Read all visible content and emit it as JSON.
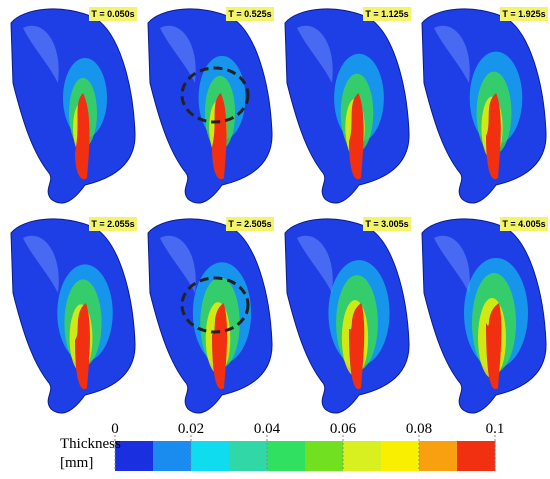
{
  "panels": [
    {
      "label": "T = 0.050s"
    },
    {
      "label": "T = 0.525s"
    },
    {
      "label": "T = 1.125s"
    },
    {
      "label": "T = 1.925s"
    },
    {
      "label": "T = 2.055s"
    },
    {
      "label": "T = 2.505s"
    },
    {
      "label": "T = 3.005s"
    },
    {
      "label": "T = 4.005s"
    }
  ],
  "colorbar": {
    "title_lines": [
      "Thickness",
      "[mm]"
    ],
    "lim": [
      0,
      0.1
    ],
    "ticks": [
      0,
      0.02,
      0.04,
      0.06,
      0.08,
      0.1
    ],
    "colors": [
      "#1a30e0",
      "#1a8cf0",
      "#10dcf0",
      "#30d8a8",
      "#30e060",
      "#70e020",
      "#d8f020",
      "#f8f000",
      "#f8a010",
      "#f03010"
    ]
  }
}
